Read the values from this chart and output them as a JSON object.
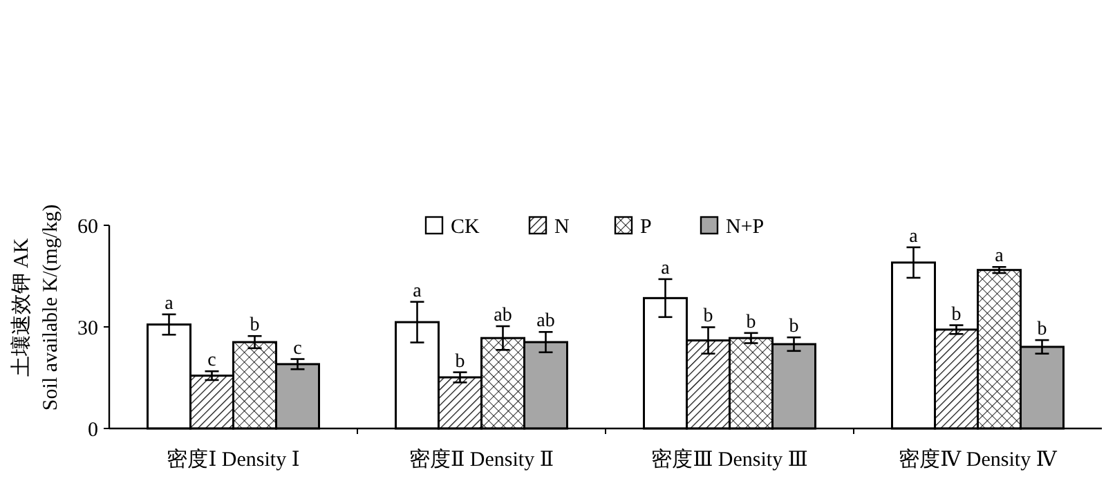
{
  "chart_data": {
    "type": "bar",
    "ylabel": "土壤速效钾 AK\nSoil available K/(mg/kg)",
    "categories": [
      "密度Ⅰ Density Ⅰ",
      "密度Ⅱ Density Ⅱ",
      "密度Ⅲ Density Ⅲ",
      "密度Ⅳ Density Ⅳ"
    ],
    "series": [
      {
        "name": "CK",
        "color": "#ffffff",
        "values": [
          30.7,
          31.4,
          38.5,
          49
        ],
        "errors": [
          3,
          6,
          5.6,
          4.5
        ],
        "value_labels": [
          "a",
          "a",
          "a",
          "a"
        ]
      },
      {
        "name": "N",
        "color": "#000000",
        "values": [
          15.6,
          15.1,
          26,
          29.2
        ],
        "errors": [
          1.3,
          1.5,
          3.9,
          1.3
        ],
        "value_labels": [
          "c",
          "b",
          "b",
          "b"
        ]
      },
      {
        "name": "P",
        "color": "#000000",
        "values": [
          25.5,
          26.7,
          26.7,
          46.8
        ],
        "errors": [
          1.8,
          3.5,
          1.5,
          0.9
        ],
        "value_labels": [
          "b",
          "ab",
          "b",
          "a"
        ]
      },
      {
        "name": "N+P",
        "color": "#a6a6a6",
        "values": [
          19,
          25.5,
          24.9,
          24.1
        ],
        "errors": [
          1.5,
          3,
          2,
          2
        ],
        "value_labels": [
          "c",
          "ab",
          "b",
          "b"
        ]
      }
    ],
    "ylim": [
      0,
      60
    ],
    "yticks": [
      0,
      30,
      60
    ],
    "grid": false,
    "legend": "top"
  }
}
